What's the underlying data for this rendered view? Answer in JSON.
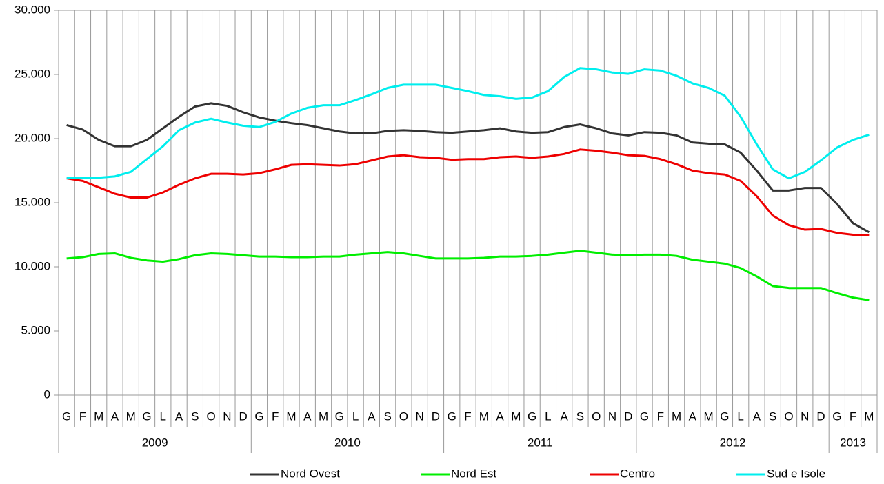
{
  "chart_data": {
    "type": "line",
    "categories": [
      "G",
      "F",
      "M",
      "A",
      "M",
      "G",
      "L",
      "A",
      "S",
      "O",
      "N",
      "D",
      "G",
      "F",
      "M",
      "A",
      "M",
      "G",
      "L",
      "A",
      "S",
      "O",
      "N",
      "D",
      "G",
      "F",
      "M",
      "A",
      "M",
      "G",
      "L",
      "A",
      "S",
      "O",
      "N",
      "D",
      "G",
      "F",
      "M",
      "A",
      "M",
      "G",
      "L",
      "A",
      "S",
      "O",
      "N",
      "D",
      "G",
      "F",
      "M"
    ],
    "year_labels": [
      "2009",
      null,
      null,
      null,
      null,
      null,
      null,
      null,
      null,
      null,
      null,
      null,
      "2010",
      null,
      null,
      null,
      null,
      null,
      null,
      null,
      null,
      null,
      null,
      null,
      "2011",
      null,
      null,
      null,
      null,
      null,
      null,
      null,
      null,
      null,
      null,
      null,
      "2012",
      null,
      null,
      null,
      null,
      null,
      null,
      null,
      null,
      null,
      null,
      null,
      "2013",
      null,
      null
    ],
    "series": [
      {
        "name": "Nord Ovest",
        "color": "#333333",
        "values": [
          21050,
          20700,
          19900,
          19400,
          19400,
          19900,
          20800,
          21700,
          22500,
          22750,
          22550,
          22050,
          21650,
          21400,
          21200,
          21050,
          20800,
          20550,
          20400,
          20400,
          20600,
          20650,
          20600,
          20500,
          20450,
          20550,
          20650,
          20800,
          20550,
          20450,
          20500,
          20900,
          21100,
          20800,
          20400,
          20250,
          20500,
          20450,
          20250,
          19700,
          19600,
          19550,
          18900,
          17500,
          15950,
          15950,
          16150,
          16150,
          14900,
          13400,
          12700
        ]
      },
      {
        "name": "Nord Est",
        "color": "#00ee00",
        "values": [
          10650,
          10750,
          11000,
          11050,
          10700,
          10500,
          10400,
          10600,
          10900,
          11050,
          11000,
          10900,
          10800,
          10800,
          10750,
          10750,
          10800,
          10800,
          10950,
          11050,
          11150,
          11050,
          10850,
          10650,
          10650,
          10650,
          10700,
          10800,
          10800,
          10850,
          10950,
          11100,
          11250,
          11100,
          10950,
          10900,
          10950,
          10950,
          10850,
          10550,
          10400,
          10250,
          9900,
          9250,
          8500,
          8350,
          8350,
          8350,
          7950,
          7600,
          7400
        ]
      },
      {
        "name": "Centro",
        "color": "#ee0000",
        "values": [
          16900,
          16700,
          16200,
          15700,
          15400,
          15400,
          15800,
          16400,
          16900,
          17250,
          17250,
          17200,
          17300,
          17600,
          17950,
          18000,
          17950,
          17900,
          18000,
          18300,
          18600,
          18700,
          18550,
          18500,
          18350,
          18400,
          18400,
          18550,
          18600,
          18500,
          18600,
          18800,
          19150,
          19050,
          18900,
          18700,
          18650,
          18400,
          18000,
          17500,
          17300,
          17200,
          16700,
          15500,
          14000,
          13250,
          12900,
          12950,
          12650,
          12500,
          12450
        ]
      },
      {
        "name": "Sud e Isole",
        "color": "#00eeee",
        "values": [
          16900,
          16950,
          16950,
          17050,
          17400,
          18400,
          19400,
          20650,
          21250,
          21550,
          21250,
          21000,
          20900,
          21300,
          21950,
          22400,
          22600,
          22600,
          23000,
          23450,
          23950,
          24200,
          24200,
          24200,
          23950,
          23700,
          23400,
          23300,
          23100,
          23200,
          23700,
          24800,
          25500,
          25400,
          25150,
          25050,
          25400,
          25300,
          24900,
          24300,
          23950,
          23350,
          21700,
          19550,
          17600,
          16900,
          17400,
          18300,
          19300,
          19900,
          20300
        ]
      }
    ],
    "ylim": [
      0,
      30000
    ],
    "yticks": [
      0,
      {
        "value": 5000,
        "label": "5.000"
      },
      {
        "value": 10000,
        "label": "10.000"
      },
      {
        "value": 15000,
        "label": "15.000"
      },
      {
        "value": 20000,
        "label": "20.000"
      },
      {
        "value": 25000,
        "label": "25.000"
      },
      {
        "value": 30000,
        "label": "30.000"
      }
    ],
    "grid": true
  }
}
